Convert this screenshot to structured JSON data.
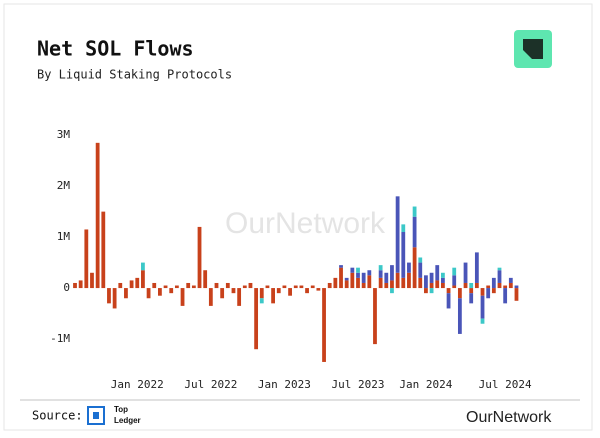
{
  "header": {
    "title": "Net SOL Flows",
    "subtitle": "By Liquid Staking Protocols"
  },
  "watermark": "OurNetwork",
  "footer": {
    "source": "Source:",
    "brand_line1": "Top",
    "brand_line2": "Ledger",
    "mark": "OurNetwork"
  },
  "chart_data": {
    "type": "bar",
    "stacked": true,
    "grid": false,
    "categories": [
      null,
      null,
      null,
      null,
      null,
      null,
      null,
      null,
      null,
      null,
      null,
      "Jan 2022",
      null,
      null,
      null,
      null,
      null,
      null,
      null,
      null,
      null,
      null,
      null,
      null,
      "Jul 2022",
      null,
      null,
      null,
      null,
      null,
      null,
      null,
      null,
      null,
      null,
      null,
      null,
      "Jan 2023",
      null,
      null,
      null,
      null,
      null,
      null,
      null,
      null,
      null,
      null,
      null,
      null,
      "Jul 2023",
      null,
      null,
      null,
      null,
      null,
      null,
      null,
      null,
      null,
      null,
      null,
      "Jan 2024",
      null,
      null,
      null,
      null,
      null,
      null,
      null,
      null,
      null,
      null,
      null,
      null,
      null,
      "Jul 2024",
      null,
      null
    ],
    "ylim": [
      -1500000,
      3200000
    ],
    "yticks": [
      {
        "value": -1000000,
        "label": "-1M"
      },
      0,
      {
        "value": 1000000,
        "label": "1M"
      },
      {
        "value": 2000000,
        "label": "2M"
      },
      {
        "value": 3000000,
        "label": "3M"
      }
    ],
    "series": [
      {
        "color": "#c8411b",
        "values": [
          100000,
          150000,
          1150000,
          300000,
          2850000,
          1500000,
          -300000,
          -400000,
          100000,
          -200000,
          150000,
          200000,
          350000,
          -200000,
          100000,
          -150000,
          50000,
          -100000,
          50000,
          -350000,
          100000,
          50000,
          1200000,
          350000,
          -350000,
          100000,
          -200000,
          100000,
          -100000,
          -350000,
          50000,
          100000,
          -1200000,
          -200000,
          50000,
          -300000,
          -100000,
          50000,
          -150000,
          50000,
          50000,
          -100000,
          50000,
          -50000,
          -1450000,
          100000,
          200000,
          400000,
          150000,
          300000,
          200000,
          100000,
          250000,
          -1100000,
          200000,
          100000,
          150000,
          300000,
          200000,
          300000,
          800000,
          200000,
          -100000,
          100000,
          150000,
          100000,
          -100000,
          50000,
          -200000,
          100000,
          -100000,
          100000,
          -150000,
          50000,
          -100000,
          100000,
          50000,
          100000,
          -250000
        ]
      },
      {
        "color": "#4a55b8",
        "values": [
          0,
          0,
          0,
          0,
          0,
          0,
          0,
          0,
          0,
          0,
          0,
          0,
          0,
          0,
          0,
          0,
          0,
          0,
          0,
          0,
          0,
          0,
          0,
          0,
          0,
          0,
          0,
          0,
          0,
          0,
          0,
          0,
          0,
          0,
          0,
          0,
          0,
          0,
          0,
          0,
          0,
          0,
          0,
          0,
          0,
          0,
          0,
          50000,
          50000,
          100000,
          100000,
          200000,
          100000,
          0,
          150000,
          200000,
          300000,
          1500000,
          900000,
          200000,
          600000,
          300000,
          250000,
          200000,
          300000,
          100000,
          -300000,
          200000,
          -700000,
          400000,
          -200000,
          600000,
          -450000,
          -200000,
          200000,
          250000,
          -300000,
          100000,
          50000
        ]
      },
      {
        "color": "#3cc8c8",
        "values": [
          0,
          0,
          0,
          0,
          0,
          0,
          0,
          0,
          0,
          0,
          0,
          0,
          150000,
          0,
          0,
          0,
          0,
          0,
          0,
          0,
          0,
          0,
          0,
          0,
          0,
          0,
          0,
          0,
          0,
          0,
          0,
          0,
          0,
          -100000,
          0,
          0,
          0,
          0,
          0,
          0,
          0,
          0,
          0,
          0,
          0,
          0,
          0,
          0,
          0,
          0,
          100000,
          0,
          0,
          0,
          100000,
          0,
          -100000,
          0,
          150000,
          0,
          200000,
          100000,
          0,
          -100000,
          0,
          100000,
          0,
          150000,
          0,
          0,
          100000,
          0,
          -100000,
          0,
          0,
          50000,
          0,
          0,
          0
        ]
      }
    ]
  }
}
